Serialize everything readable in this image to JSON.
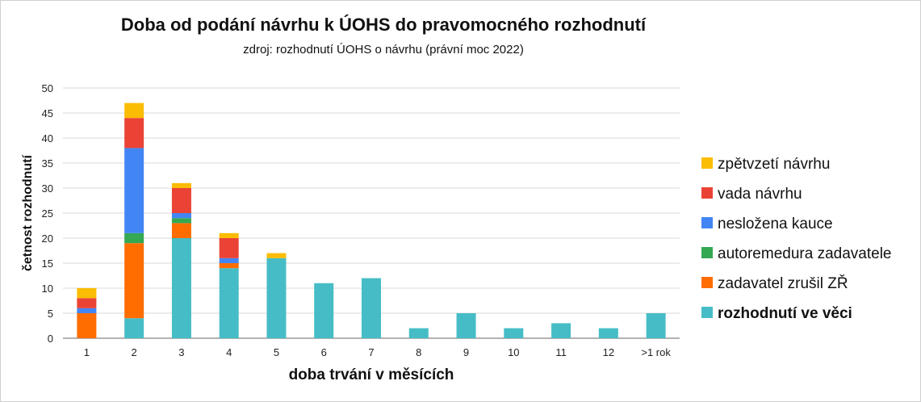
{
  "chart_data": {
    "type": "bar",
    "stacked": true,
    "title": "Doba od podání návrhu k ÚOHS do pravomocného rozhodnutí",
    "subtitle": "zdroj: rozhodnutí ÚOHS o návrhu (právní moc 2022)",
    "xlabel": "doba trvání v měsících",
    "ylabel": "četnost rozhodnutí",
    "ylim": [
      0,
      50
    ],
    "yticks": [
      0,
      5,
      10,
      15,
      20,
      25,
      30,
      35,
      40,
      45,
      50
    ],
    "grid": true,
    "legend_position": "right",
    "categories": [
      "1",
      "2",
      "3",
      "4",
      "5",
      "6",
      "7",
      "8",
      "9",
      "10",
      "11",
      "12",
      ">1 rok"
    ],
    "series": [
      {
        "name": "rozhodnutí ve věci",
        "color": "#46bdc6",
        "values": [
          0,
          4,
          20,
          14,
          16,
          11,
          12,
          2,
          5,
          2,
          3,
          2,
          5
        ]
      },
      {
        "name": "zadavatel zrušil ZŘ",
        "color": "#ff6d01",
        "values": [
          5,
          15,
          3,
          1,
          0,
          0,
          0,
          0,
          0,
          0,
          0,
          0,
          0
        ]
      },
      {
        "name": "autoremedura zadavatele",
        "color": "#34a853",
        "values": [
          0,
          2,
          1,
          0,
          0,
          0,
          0,
          0,
          0,
          0,
          0,
          0,
          0
        ]
      },
      {
        "name": "nesložena kauce",
        "color": "#4285f4",
        "values": [
          1,
          17,
          1,
          1,
          0,
          0,
          0,
          0,
          0,
          0,
          0,
          0,
          0
        ]
      },
      {
        "name": "vada návrhu",
        "color": "#ea4335",
        "values": [
          2,
          6,
          5,
          4,
          0,
          0,
          0,
          0,
          0,
          0,
          0,
          0,
          0
        ]
      },
      {
        "name": "zpětvzetí návrhu",
        "color": "#fbbc04",
        "values": [
          2,
          3,
          1,
          1,
          1,
          0,
          0,
          0,
          0,
          0,
          0,
          0,
          0
        ]
      }
    ],
    "legend_order": [
      "zpětvzetí návrhu",
      "vada návrhu",
      "nesložena kauce",
      "autoremedura zadavatele",
      "zadavatel zrušil ZŘ",
      "rozhodnutí ve věci"
    ],
    "legend_bold": [
      "rozhodnutí ve věci"
    ]
  }
}
